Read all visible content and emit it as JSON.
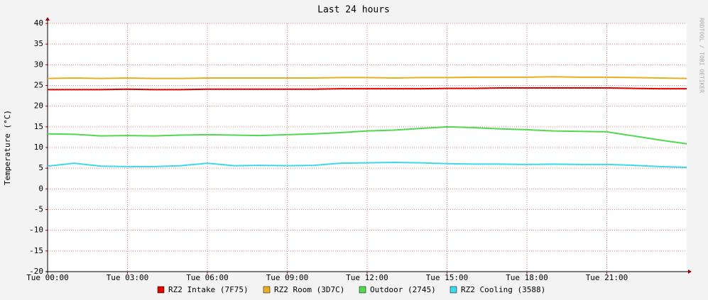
{
  "chart_data": {
    "type": "line",
    "title": "Last 24 hours",
    "y_label": "Temperature (°C)",
    "side_text": "RRDTOOL / TOBI OETIKER",
    "x": [
      0,
      1,
      2,
      3,
      4,
      5,
      6,
      7,
      8,
      9,
      10,
      11,
      12,
      13,
      14,
      15,
      16,
      17,
      18,
      19,
      20,
      21,
      22,
      23,
      24
    ],
    "xlim": [
      0,
      24
    ],
    "xticks": [
      {
        "value": 0,
        "label": "Tue 00:00"
      },
      {
        "value": 3,
        "label": "Tue 03:00"
      },
      {
        "value": 6,
        "label": "Tue 06:00"
      },
      {
        "value": 9,
        "label": "Tue 09:00"
      },
      {
        "value": 12,
        "label": "Tue 12:00"
      },
      {
        "value": 15,
        "label": "Tue 15:00"
      },
      {
        "value": 18,
        "label": "Tue 18:00"
      },
      {
        "value": 21,
        "label": "Tue 21:00"
      }
    ],
    "ylim": [
      -20,
      40
    ],
    "yticks": [
      -20,
      -15,
      -10,
      -5,
      0,
      5,
      10,
      15,
      20,
      25,
      30,
      35,
      40
    ],
    "grid": true,
    "series": [
      {
        "name": "RZ2 Intake (7F75)",
        "color": "#e00000",
        "values": [
          24.0,
          24.0,
          24.0,
          24.1,
          24.0,
          24.0,
          24.1,
          24.1,
          24.1,
          24.1,
          24.1,
          24.2,
          24.2,
          24.2,
          24.2,
          24.3,
          24.3,
          24.4,
          24.4,
          24.4,
          24.4,
          24.4,
          24.3,
          24.2,
          24.2
        ]
      },
      {
        "name": "RZ2 Room (3D7C)",
        "color": "#e8b020",
        "values": [
          26.7,
          26.8,
          26.7,
          26.8,
          26.7,
          26.7,
          26.8,
          26.8,
          26.8,
          26.8,
          26.8,
          26.9,
          26.9,
          26.8,
          26.9,
          26.9,
          27.0,
          27.0,
          27.0,
          27.1,
          27.0,
          27.0,
          26.9,
          26.8,
          26.7
        ]
      },
      {
        "name": "Outdoor (2745)",
        "color": "#50d850",
        "values": [
          13.3,
          13.2,
          12.8,
          12.9,
          12.8,
          13.0,
          13.1,
          13.0,
          12.9,
          13.1,
          13.3,
          13.6,
          14.0,
          14.2,
          14.6,
          15.0,
          14.8,
          14.5,
          14.3,
          14.0,
          13.9,
          13.8,
          12.8,
          11.8,
          10.9
        ]
      },
      {
        "name": "RZ2 Cooling (3588)",
        "color": "#40d8e8",
        "values": [
          5.5,
          6.2,
          5.5,
          5.4,
          5.4,
          5.6,
          6.2,
          5.6,
          5.7,
          5.6,
          5.7,
          6.2,
          6.3,
          6.4,
          6.3,
          6.1,
          6.0,
          6.0,
          5.9,
          6.0,
          5.9,
          5.9,
          5.7,
          5.4,
          5.2
        ]
      }
    ]
  }
}
